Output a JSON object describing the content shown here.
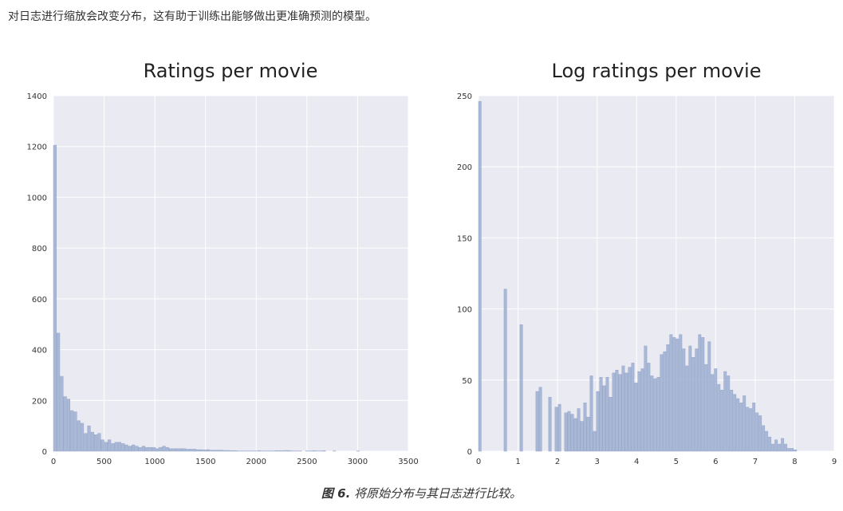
{
  "intro_text": "对日志进行缩放会改变分布，这有助于训练出能够做出更准确预测的模型。",
  "caption": {
    "figure_label": "图 6.",
    "text": " 将原始分布与其日志进行比较。"
  },
  "colors": {
    "plot_bg": "#eaeaf2",
    "grid": "#ffffff",
    "bar_fill": "#a3b3d3",
    "bar_stroke": "#8c9ec4"
  },
  "chart_data": [
    {
      "type": "bar",
      "title": "Ratings per movie",
      "xlim": [
        0,
        3500
      ],
      "ylim": [
        0,
        1400
      ],
      "xticks": [
        0,
        500,
        1000,
        1500,
        2000,
        2500,
        3000,
        3500
      ],
      "yticks": [
        0,
        200,
        400,
        600,
        800,
        1000,
        1200,
        1400
      ],
      "bin_width": 33.6,
      "bins_start": [
        0,
        33.6,
        67.2,
        100.8,
        134.4,
        168,
        201.6,
        235.2,
        268.8,
        302.4,
        336,
        369.6,
        403.2,
        436.8,
        470.4,
        504,
        537.6,
        571.2,
        604.8,
        638.4,
        672,
        705.6,
        739.2,
        772.8,
        806.4,
        840,
        873.6,
        907.2,
        940.8,
        974.4,
        1008,
        1041.6,
        1075.2,
        1108.8,
        1142.4,
        1176,
        1209.6,
        1243.2,
        1276.8,
        1310.4,
        1344,
        1377.6,
        1411.2,
        1444.8,
        1478.4,
        1512,
        1545.6,
        1579.2,
        1612.8,
        1646.4,
        1680,
        1713.6,
        1747.2,
        1780.8,
        1814.4,
        1848,
        1881.6,
        1915.2,
        1948.8,
        1982.4,
        2016,
        2049.6,
        2083.2,
        2116.8,
        2150.4,
        2184,
        2217.6,
        2251.2,
        2284.8,
        2318.4,
        2352,
        2385.6,
        2419.2,
        2452.8,
        2486.4,
        2520,
        2553.6,
        2587.2,
        2620.8,
        2654.4,
        2688,
        2721.6,
        2755.2,
        2788.8,
        2822.4,
        2856,
        2889.6,
        2923.2,
        2956.8,
        2990.4,
        3024,
        3057.6,
        3091.2,
        3124.8,
        3158.4,
        3192,
        3225.6,
        3259.2,
        3292.8,
        3326.4
      ],
      "values": [
        1205,
        465,
        295,
        215,
        205,
        160,
        155,
        120,
        110,
        70,
        100,
        75,
        65,
        70,
        45,
        35,
        45,
        30,
        35,
        35,
        30,
        25,
        20,
        25,
        20,
        15,
        20,
        15,
        15,
        15,
        10,
        15,
        20,
        15,
        10,
        10,
        10,
        10,
        10,
        8,
        8,
        8,
        6,
        6,
        5,
        6,
        4,
        4,
        4,
        4,
        3,
        3,
        2,
        2,
        1,
        1,
        1,
        1,
        1,
        1,
        2,
        1,
        1,
        1,
        1,
        2,
        2,
        2,
        3,
        2,
        1,
        1,
        1,
        0,
        1,
        1,
        2,
        1,
        1,
        2,
        0,
        0,
        1,
        0,
        0,
        0,
        0,
        0,
        0,
        1,
        0,
        0,
        0,
        0,
        0,
        0,
        0,
        0,
        0,
        0
      ]
    },
    {
      "type": "bar",
      "title": "Log ratings per movie",
      "xlim": [
        0,
        9
      ],
      "ylim": [
        0,
        250
      ],
      "xticks": [
        0,
        1,
        2,
        3,
        4,
        5,
        6,
        7,
        8,
        9
      ],
      "yticks": [
        0,
        50,
        100,
        150,
        200,
        250
      ],
      "bin_width": 0.0806,
      "bins_start": [
        0,
        0.0806,
        0.1612,
        0.2418,
        0.3224,
        0.403,
        0.4836,
        0.5642,
        0.6448,
        0.7254,
        0.806,
        0.8866,
        0.9672,
        1.0478,
        1.1284,
        1.209,
        1.2896,
        1.3702,
        1.4508,
        1.5314,
        1.612,
        1.6926,
        1.7732,
        1.8538,
        1.9344,
        2.015,
        2.0956,
        2.1762,
        2.2568,
        2.3374,
        2.418,
        2.4986,
        2.5792,
        2.6598,
        2.7404,
        2.821,
        2.9016,
        2.9822,
        3.0628,
        3.1434,
        3.224,
        3.3046,
        3.3852,
        3.4658,
        3.5464,
        3.627,
        3.7076,
        3.7882,
        3.8688,
        3.9494,
        4.03,
        4.1106,
        4.1912,
        4.2718,
        4.3524,
        4.433,
        4.5136,
        4.5942,
        4.6748,
        4.7554,
        4.836,
        4.9166,
        4.9972,
        5.0778,
        5.1584,
        5.239,
        5.3196,
        5.4002,
        5.4808,
        5.5614,
        5.642,
        5.7226,
        5.8032,
        5.8838,
        5.9644,
        6.045,
        6.1256,
        6.2062,
        6.2868,
        6.3674,
        6.448,
        6.5286,
        6.6092,
        6.6898,
        6.7704,
        6.851,
        6.9316,
        7.0122,
        7.0928,
        7.1734,
        7.254,
        7.3346,
        7.4152,
        7.4958,
        7.5764,
        7.657,
        7.7376,
        7.8182,
        7.899,
        7.98
      ],
      "values": [
        246,
        0,
        0,
        0,
        0,
        0,
        0,
        0,
        114,
        0,
        0,
        0,
        0,
        89,
        0,
        0,
        0,
        0,
        42,
        45,
        0,
        0,
        38,
        0,
        31,
        33,
        0,
        27,
        28,
        26,
        23,
        30,
        21,
        34,
        24,
        53,
        14,
        42,
        52,
        46,
        52,
        38,
        55,
        57,
        54,
        60,
        55,
        59,
        62,
        48,
        56,
        58,
        74,
        62,
        53,
        51,
        52,
        68,
        70,
        75,
        82,
        80,
        79,
        82,
        72,
        60,
        74,
        66,
        72,
        82,
        80,
        61,
        77,
        54,
        58,
        47,
        43,
        56,
        53,
        43,
        40,
        37,
        34,
        39,
        31,
        30,
        34,
        27,
        25,
        18,
        14,
        10,
        5,
        8,
        5,
        9,
        5,
        2,
        2,
        1
      ]
    }
  ]
}
